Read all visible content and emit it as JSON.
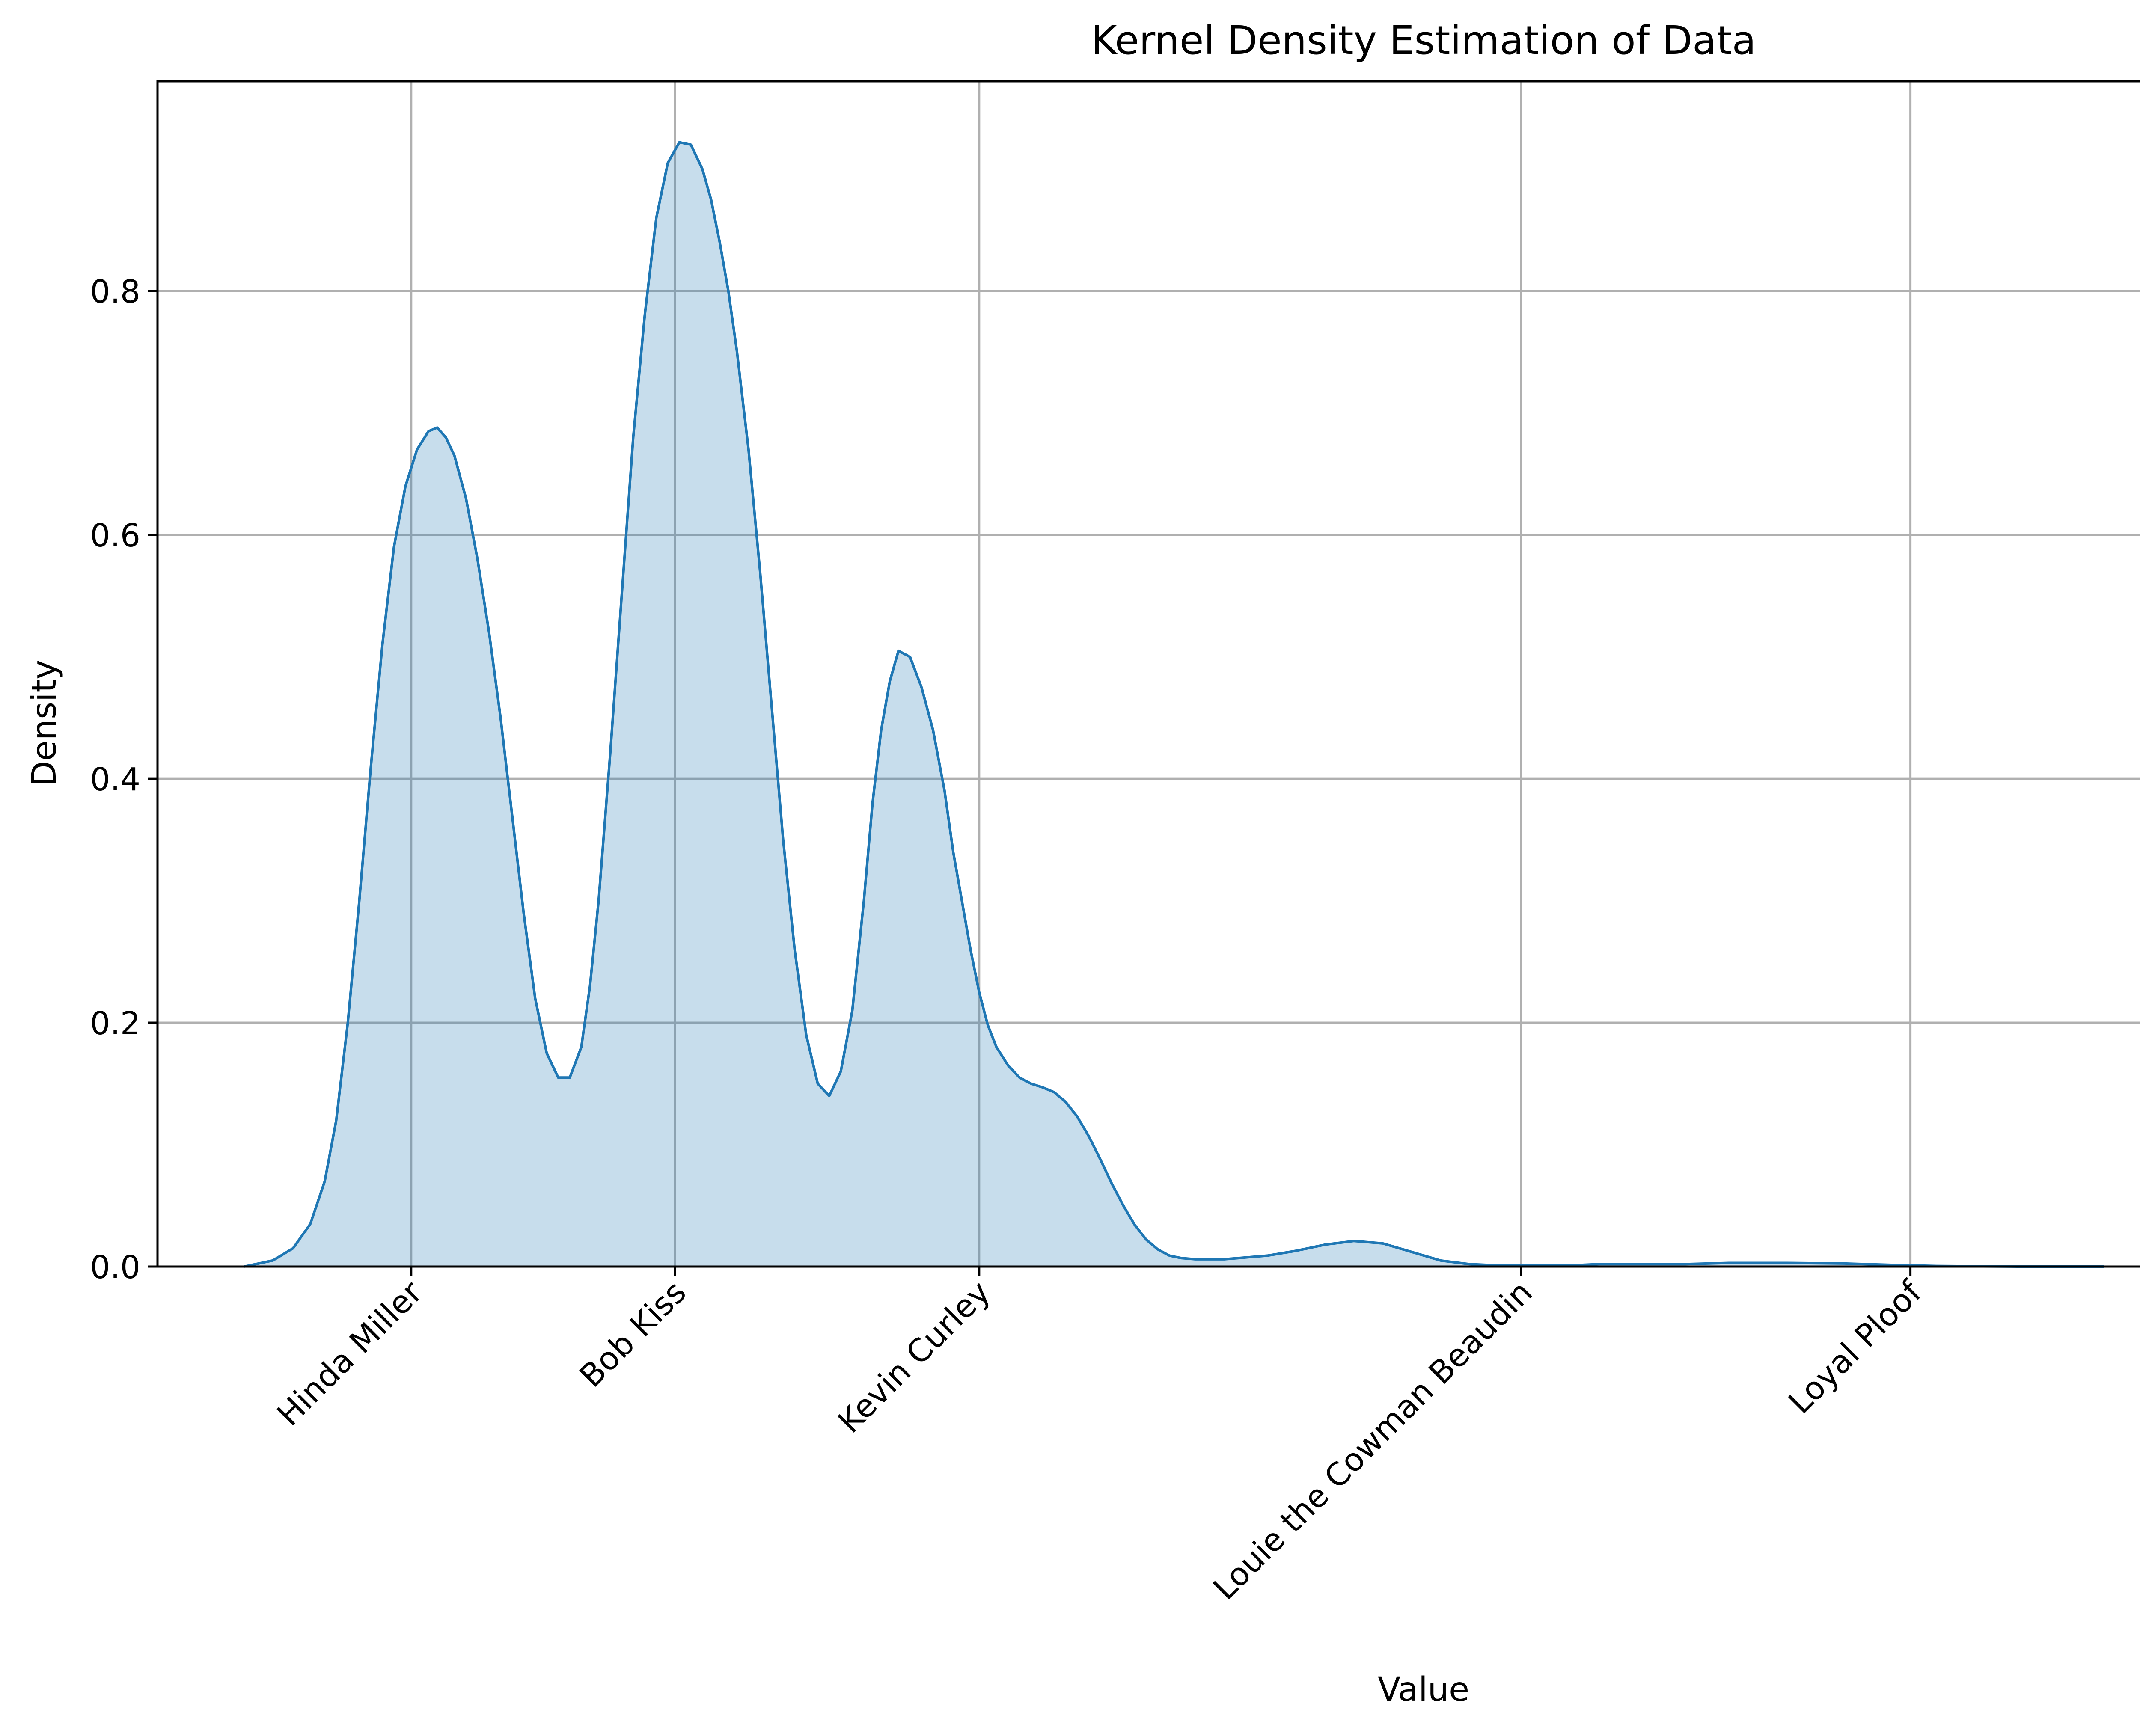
{
  "chart_data": {
    "type": "area",
    "title": "Kernel Density Estimation of Data",
    "xlabel": "Value",
    "ylabel": "Density",
    "xlim": [
      -0.45,
      6.45
    ],
    "ylim": [
      0,
      0.972
    ],
    "yticks": [
      0.0,
      0.2,
      0.4,
      0.6,
      0.8
    ],
    "ytick_labels": [
      "0.0",
      "0.2",
      "0.4",
      "0.6",
      "0.8"
    ],
    "xticks": [
      0.43,
      1.345,
      2.4,
      4.28,
      5.63
    ],
    "xtick_labels": [
      "Hinda Miller",
      "Bob Kiss",
      "Kevin Curley",
      "Louie the Cowman Beaudin",
      "Loyal Ploof"
    ],
    "grid": true,
    "colors": {
      "line": "#1f77b4",
      "fill": "#1f77b4",
      "fill_opacity": 0.25,
      "grid": "#b0b0b0"
    },
    "series": [
      {
        "x": [
          -0.15,
          -0.05,
          0.02,
          0.08,
          0.13,
          0.17,
          0.21,
          0.25,
          0.29,
          0.33,
          0.37,
          0.41,
          0.45,
          0.49,
          0.52,
          0.55,
          0.58,
          0.62,
          0.66,
          0.7,
          0.74,
          0.78,
          0.82,
          0.86,
          0.9,
          0.94,
          0.98,
          1.02,
          1.05,
          1.08,
          1.12,
          1.16,
          1.2,
          1.24,
          1.28,
          1.32,
          1.36,
          1.4,
          1.44,
          1.47,
          1.5,
          1.53,
          1.56,
          1.6,
          1.64,
          1.68,
          1.72,
          1.76,
          1.8,
          1.84,
          1.88,
          1.92,
          1.96,
          2.0,
          2.03,
          2.06,
          2.09,
          2.12,
          2.16,
          2.2,
          2.24,
          2.28,
          2.31,
          2.34,
          2.37,
          2.4,
          2.43,
          2.46,
          2.5,
          2.54,
          2.58,
          2.62,
          2.66,
          2.7,
          2.74,
          2.78,
          2.82,
          2.86,
          2.9,
          2.94,
          2.98,
          3.02,
          3.06,
          3.1,
          3.15,
          3.2,
          3.25,
          3.3,
          3.35,
          3.4,
          3.5,
          3.6,
          3.7,
          3.8,
          3.9,
          4.0,
          4.1,
          4.2,
          4.28,
          4.36,
          4.45,
          4.55,
          4.65,
          4.75,
          4.85,
          5.0,
          5.2,
          5.4,
          5.55,
          5.63,
          5.72,
          5.85,
          6.0,
          6.15,
          6.3
        ],
        "y": [
          0.0,
          0.005,
          0.015,
          0.035,
          0.07,
          0.12,
          0.2,
          0.3,
          0.41,
          0.51,
          0.59,
          0.64,
          0.67,
          0.685,
          0.688,
          0.68,
          0.665,
          0.63,
          0.58,
          0.52,
          0.45,
          0.37,
          0.29,
          0.22,
          0.175,
          0.155,
          0.155,
          0.18,
          0.23,
          0.3,
          0.42,
          0.55,
          0.68,
          0.78,
          0.86,
          0.905,
          0.922,
          0.92,
          0.9,
          0.875,
          0.84,
          0.8,
          0.75,
          0.67,
          0.57,
          0.46,
          0.35,
          0.26,
          0.19,
          0.15,
          0.14,
          0.16,
          0.21,
          0.3,
          0.38,
          0.44,
          0.48,
          0.505,
          0.5,
          0.475,
          0.44,
          0.39,
          0.34,
          0.3,
          0.26,
          0.225,
          0.198,
          0.18,
          0.165,
          0.155,
          0.15,
          0.147,
          0.143,
          0.135,
          0.123,
          0.107,
          0.088,
          0.068,
          0.05,
          0.034,
          0.022,
          0.014,
          0.009,
          0.007,
          0.006,
          0.006,
          0.006,
          0.007,
          0.008,
          0.009,
          0.013,
          0.018,
          0.021,
          0.019,
          0.012,
          0.005,
          0.002,
          0.001,
          0.001,
          0.001,
          0.001,
          0.002,
          0.002,
          0.002,
          0.002,
          0.003,
          0.003,
          0.0025,
          0.0015,
          0.001,
          0.0005,
          0.0002,
          0.0,
          0.0,
          0.0
        ]
      }
    ]
  }
}
